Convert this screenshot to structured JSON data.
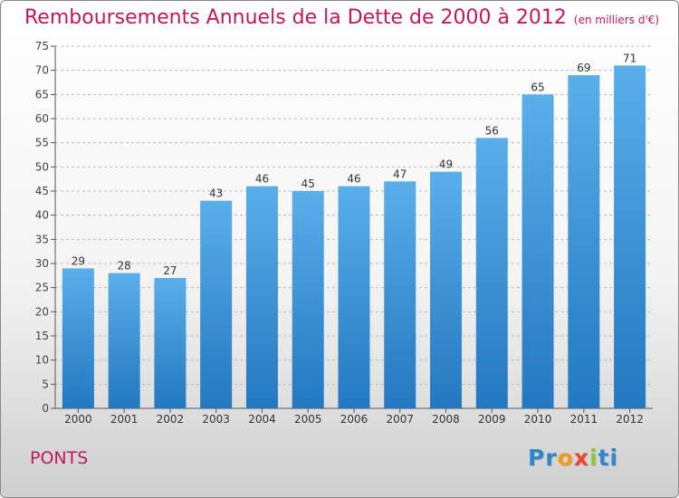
{
  "title": "Remboursements Annuels de la Dette de 2000 à 2012",
  "unit": "(en milliers d'€)",
  "commune": "PONTS",
  "logo": {
    "text": "Proxiti",
    "letter_colors": [
      "#2f86cc",
      "#2f86cc",
      "#f29a1e",
      "#e8452c",
      "#8cc63f",
      "#2f86cc",
      "#2f86cc"
    ]
  },
  "colors": {
    "title": "#c2185b",
    "bar_top": "#5aaeea",
    "bar_bottom": "#2378c0",
    "grid": "#b7b7b7"
  },
  "chart_data": {
    "type": "bar",
    "categories": [
      "2000",
      "2001",
      "2002",
      "2003",
      "2004",
      "2005",
      "2006",
      "2007",
      "2008",
      "2009",
      "2010",
      "2011",
      "2012"
    ],
    "values": [
      29,
      28,
      27,
      43,
      46,
      45,
      46,
      47,
      49,
      56,
      65,
      69,
      71
    ],
    "ylim": [
      0,
      75
    ],
    "yticks": [
      0,
      5,
      10,
      15,
      20,
      25,
      30,
      35,
      40,
      45,
      50,
      55,
      60,
      65,
      70,
      75
    ],
    "grid": true,
    "data_labels": true
  }
}
